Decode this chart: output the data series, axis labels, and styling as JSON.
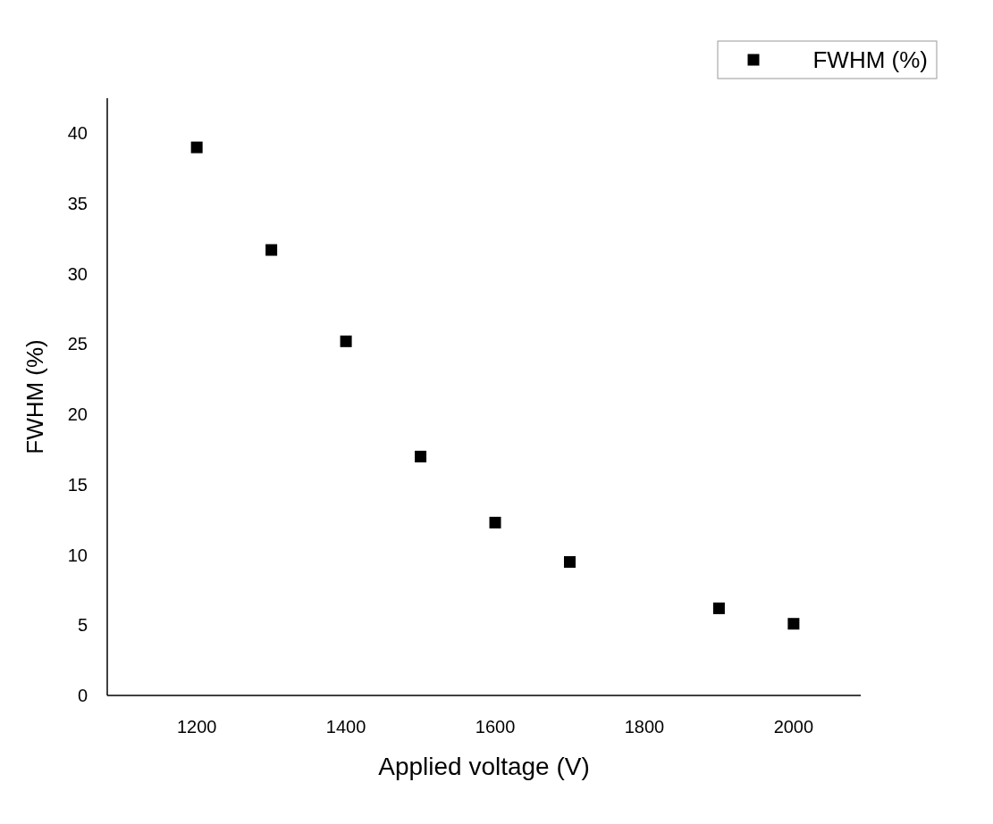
{
  "chart_data": {
    "type": "scatter",
    "xlabel": "Applied voltage (V)",
    "ylabel": "FWHM (%)",
    "x": [
      1200,
      1300,
      1400,
      1500,
      1600,
      1700,
      1900,
      2000
    ],
    "series": [
      {
        "name": "FWHM (%)",
        "color": "#000000",
        "values": [
          39.0,
          31.7,
          25.2,
          17.0,
          12.3,
          9.5,
          6.2,
          5.1
        ]
      }
    ],
    "xlim": [
      1080,
      2090
    ],
    "xticks": [
      1200,
      1400,
      1600,
      1800,
      2000
    ],
    "ylim": [
      0,
      42.5
    ],
    "yticks": [
      0,
      5,
      10,
      15,
      20,
      25,
      30,
      35,
      40
    ],
    "marker": "square",
    "legend": "top right",
    "grid": false
  }
}
